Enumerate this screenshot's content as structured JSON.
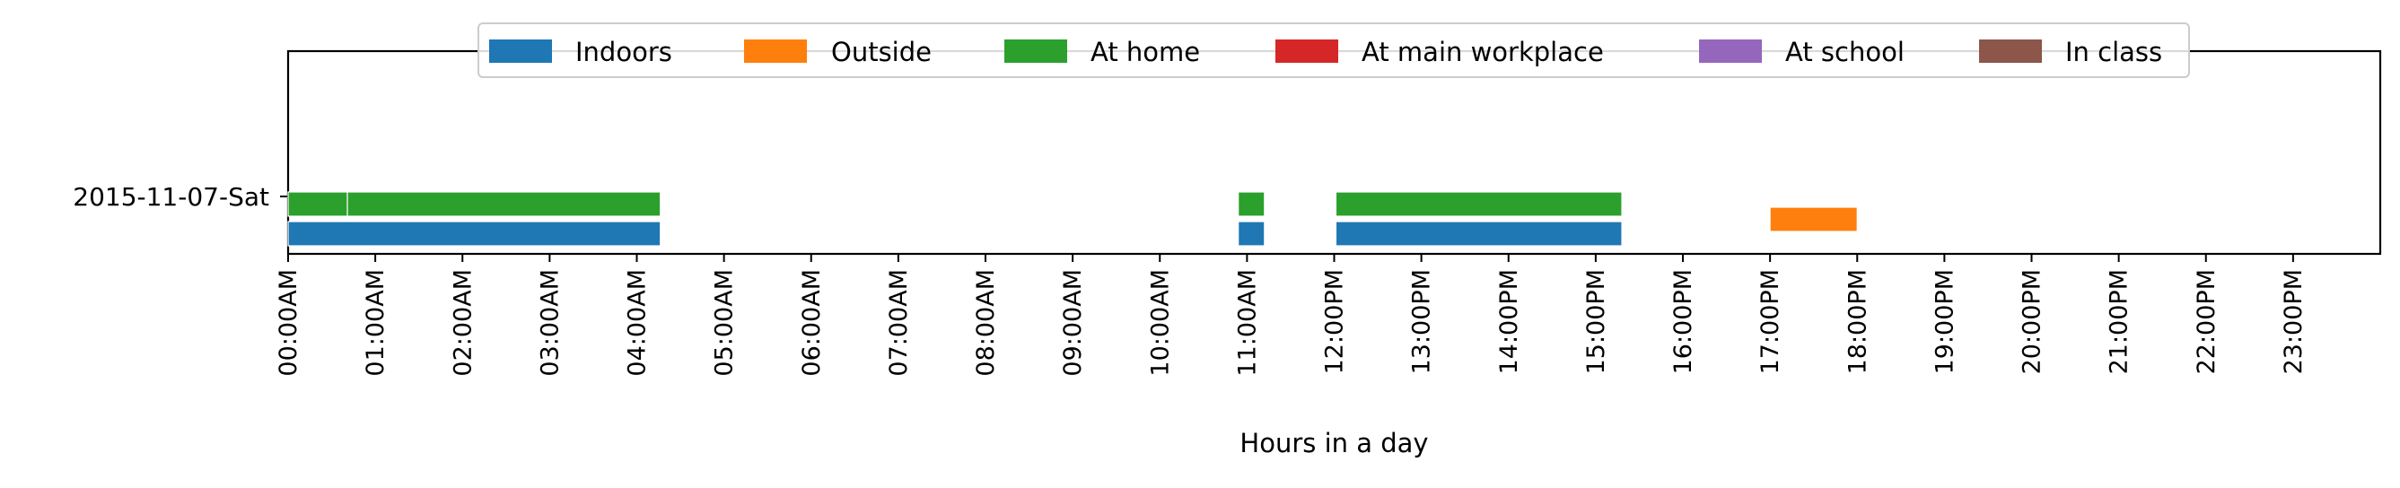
{
  "chart_data": {
    "type": "timeline",
    "title": "",
    "xlabel": "Hours in a day",
    "ylabel": "",
    "xlim": [
      0,
      24
    ],
    "grid": false,
    "legend_position": "top",
    "x_tick_labels": [
      "00:00AM",
      "01:00AM",
      "02:00AM",
      "03:00AM",
      "04:00AM",
      "05:00AM",
      "06:00AM",
      "07:00AM",
      "08:00AM",
      "09:00AM",
      "10:00AM",
      "11:00AM",
      "12:00PM",
      "13:00PM",
      "14:00PM",
      "15:00PM",
      "16:00PM",
      "17:00PM",
      "18:00PM",
      "19:00PM",
      "20:00PM",
      "21:00PM",
      "22:00PM",
      "23:00PM"
    ],
    "rows": [
      {
        "label": "2015-11-07-Sat"
      }
    ],
    "series": [
      {
        "name": "Indoors",
        "color": "#1f77b4",
        "intervals": [
          [
            0.0,
            4.27
          ],
          [
            10.9,
            11.2
          ],
          [
            12.02,
            15.3
          ]
        ]
      },
      {
        "name": "Outside",
        "color": "#ff7f0e",
        "intervals": [
          [
            17.0,
            18.0
          ]
        ]
      },
      {
        "name": "At home",
        "color": "#2ca02c",
        "intervals": [
          [
            0.0,
            0.68
          ],
          [
            0.68,
            4.27
          ],
          [
            10.9,
            11.2
          ],
          [
            12.02,
            15.3
          ]
        ]
      },
      {
        "name": "At main workplace",
        "color": "#d62728",
        "intervals": []
      },
      {
        "name": "At school",
        "color": "#9467bd",
        "intervals": []
      },
      {
        "name": "In class",
        "color": "#8c564b",
        "intervals": []
      }
    ]
  }
}
